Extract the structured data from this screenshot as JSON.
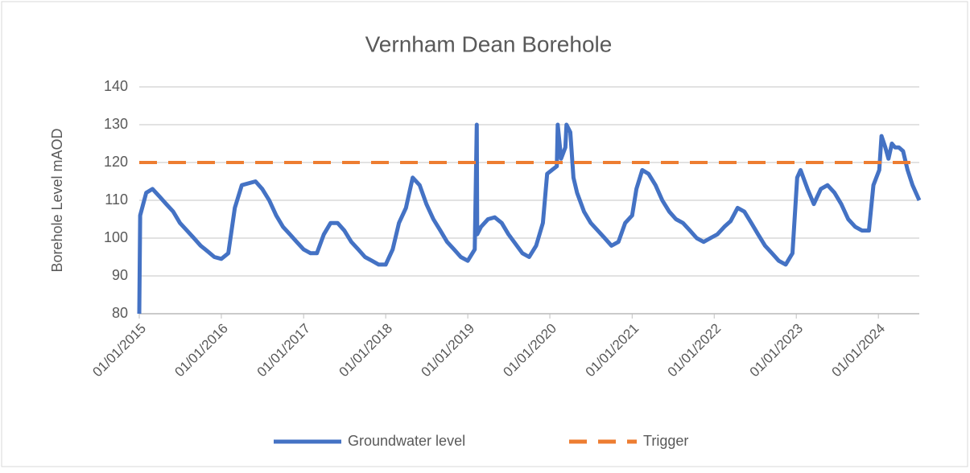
{
  "chart_data": {
    "type": "line",
    "title": "Vernham Dean Borehole",
    "y_label": "Borehole Level mAOD",
    "xlim": [
      "2015-01-01",
      "2024-07-01"
    ],
    "xticks": [
      {
        "value": "2015-01-01",
        "label": "01/01/2015"
      },
      {
        "value": "2016-01-01",
        "label": "01/01/2016"
      },
      {
        "value": "2017-01-01",
        "label": "01/01/2017"
      },
      {
        "value": "2018-01-01",
        "label": "01/01/2018"
      },
      {
        "value": "2019-01-01",
        "label": "01/01/2019"
      },
      {
        "value": "2020-01-01",
        "label": "01/01/2020"
      },
      {
        "value": "2021-01-01",
        "label": "01/01/2021"
      },
      {
        "value": "2022-01-01",
        "label": "01/01/2022"
      },
      {
        "value": "2023-01-01",
        "label": "01/01/2023"
      },
      {
        "value": "2024-01-01",
        "label": "01/01/2024"
      }
    ],
    "ylim": [
      80,
      140
    ],
    "yticks": [
      80,
      90,
      100,
      110,
      120,
      130,
      140
    ],
    "grid": true,
    "legend": "bottom",
    "series": [
      {
        "name": "Groundwater level",
        "color": "#4472c4",
        "dash": false,
        "x": [
          "2015-01-01",
          "2015-01-05",
          "2015-02-01",
          "2015-03-01",
          "2015-04-01",
          "2015-05-01",
          "2015-06-01",
          "2015-07-01",
          "2015-08-01",
          "2015-09-01",
          "2015-10-01",
          "2015-11-01",
          "2015-12-01",
          "2016-01-01",
          "2016-02-01",
          "2016-03-01",
          "2016-04-01",
          "2016-05-01",
          "2016-06-01",
          "2016-07-01",
          "2016-08-01",
          "2016-09-01",
          "2016-10-01",
          "2016-11-01",
          "2016-12-01",
          "2017-01-01",
          "2017-02-01",
          "2017-03-01",
          "2017-04-01",
          "2017-05-01",
          "2017-06-01",
          "2017-07-01",
          "2017-08-01",
          "2017-09-01",
          "2017-10-01",
          "2017-11-01",
          "2017-12-01",
          "2018-01-01",
          "2018-02-01",
          "2018-03-01",
          "2018-04-01",
          "2018-05-01",
          "2018-06-01",
          "2018-07-01",
          "2018-08-01",
          "2018-09-01",
          "2018-10-01",
          "2018-11-01",
          "2018-12-01",
          "2019-01-01",
          "2019-02-01",
          "2019-02-10",
          "2019-02-12",
          "2019-03-01",
          "2019-04-01",
          "2019-05-01",
          "2019-06-01",
          "2019-07-01",
          "2019-08-01",
          "2019-09-01",
          "2019-10-01",
          "2019-11-01",
          "2019-12-01",
          "2019-12-20",
          "2020-01-10",
          "2020-02-01",
          "2020-02-05",
          "2020-02-20",
          "2020-03-10",
          "2020-03-15",
          "2020-04-01",
          "2020-04-15",
          "2020-05-01",
          "2020-06-01",
          "2020-07-01",
          "2020-08-01",
          "2020-09-01",
          "2020-10-01",
          "2020-11-01",
          "2020-12-01",
          "2021-01-01",
          "2021-01-20",
          "2021-02-15",
          "2021-03-15",
          "2021-04-15",
          "2021-05-15",
          "2021-06-15",
          "2021-07-15",
          "2021-08-15",
          "2021-09-15",
          "2021-10-15",
          "2021-11-15",
          "2021-12-15",
          "2022-01-15",
          "2022-02-15",
          "2022-03-15",
          "2022-04-15",
          "2022-05-15",
          "2022-06-15",
          "2022-07-15",
          "2022-08-15",
          "2022-09-15",
          "2022-10-15",
          "2022-11-15",
          "2022-12-15",
          "2023-01-05",
          "2023-01-20",
          "2023-02-20",
          "2023-03-20",
          "2023-04-20",
          "2023-05-20",
          "2023-06-20",
          "2023-07-20",
          "2023-08-20",
          "2023-09-20",
          "2023-10-20",
          "2023-11-20",
          "2023-12-10",
          "2024-01-05",
          "2024-01-15",
          "2024-02-01",
          "2024-02-15",
          "2024-03-01",
          "2024-03-15",
          "2024-04-01",
          "2024-04-20",
          "2024-05-10",
          "2024-06-01",
          "2024-07-01"
        ],
        "values": [
          80,
          106,
          112,
          113,
          111,
          109,
          107,
          104,
          102,
          100,
          98,
          96.5,
          95,
          94.5,
          96,
          108,
          114,
          114.5,
          115,
          113,
          110,
          106,
          103,
          101,
          99,
          97,
          96,
          96,
          101,
          104,
          104,
          102,
          99,
          97,
          95,
          94,
          93,
          93,
          97,
          104,
          108,
          116,
          114,
          109,
          105,
          102,
          99,
          97,
          95,
          94,
          97,
          130,
          101,
          103,
          105,
          105.5,
          104,
          101,
          98.5,
          96,
          95,
          98,
          104,
          117,
          118,
          119,
          130,
          121,
          124,
          130,
          128,
          116,
          112,
          107,
          104,
          102,
          100,
          98,
          99,
          104,
          106,
          113,
          118,
          117,
          114,
          110,
          107,
          105,
          104,
          102,
          100,
          99,
          100,
          101,
          103,
          104.5,
          108,
          107,
          104,
          101,
          98,
          96,
          94,
          93,
          96,
          116,
          118,
          113,
          109,
          113,
          114,
          112,
          109,
          105,
          103,
          102,
          102,
          114,
          118,
          127,
          124,
          121,
          125,
          124,
          124,
          123,
          118,
          114,
          110
        ]
      },
      {
        "name": "Trigger",
        "color": "#ed7d31",
        "dash": true,
        "x": [
          "2015-01-01",
          "2024-07-01"
        ],
        "values": [
          120,
          120
        ]
      }
    ]
  }
}
